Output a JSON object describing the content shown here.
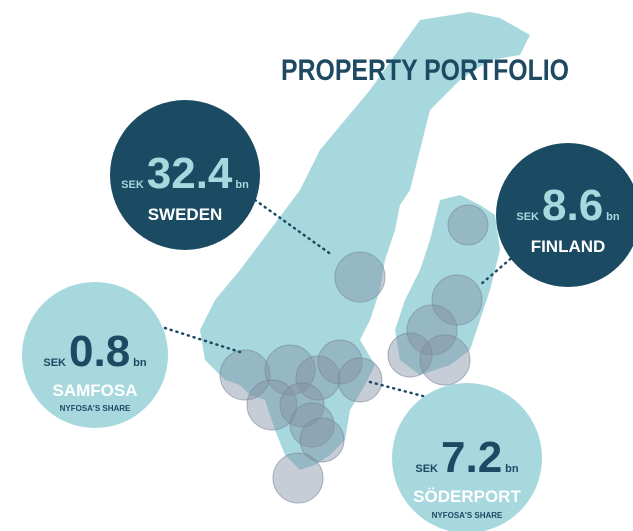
{
  "title": "PROPERTY PORTFOLIO",
  "callouts": [
    {
      "currency": "SEK",
      "amount": "32.4",
      "unit": "bn",
      "name": "SWEDEN"
    },
    {
      "currency": "SEK",
      "amount": "8.6",
      "unit": "bn",
      "name": "FINLAND"
    },
    {
      "currency": "SEK",
      "amount": "0.8",
      "unit": "bn",
      "name": "SAMFOSA",
      "note": "NYFOSA'S SHARE"
    },
    {
      "currency": "SEK",
      "amount": "7.2",
      "unit": "bn",
      "name": "SÖDERPORT",
      "note": "NYFOSA'S SHARE"
    }
  ]
}
